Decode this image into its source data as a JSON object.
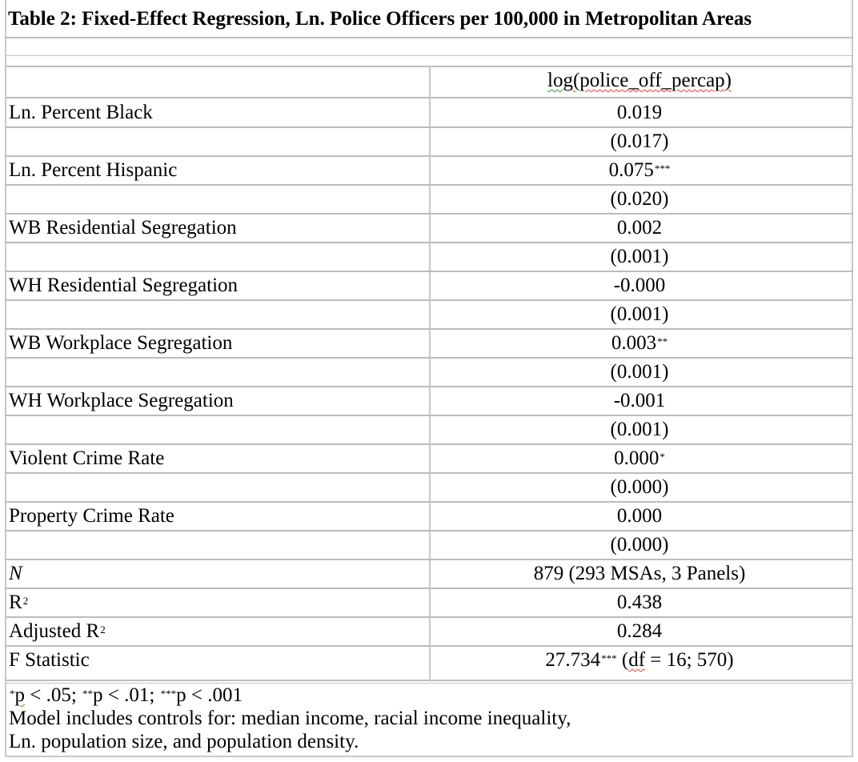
{
  "title": "Table 2: Fixed-Effect Regression, Ln. Police Officers per 100,000 in Metropolitan Areas",
  "column_header": {
    "dep_prefix": "log",
    "dep_name": "(police_off_percap)"
  },
  "rows": [
    {
      "label": "Ln. Percent Black",
      "coef": "0.019",
      "stars": "",
      "se": "(0.017)"
    },
    {
      "label": "Ln. Percent Hispanic",
      "coef": "0.075",
      "stars": "***",
      "se": "(0.020)"
    },
    {
      "label": "WB Residential Segregation",
      "coef": "0.002",
      "stars": "",
      "se": "(0.001)"
    },
    {
      "label": "WH Residential Segregation",
      "coef": "-0.000",
      "stars": "",
      "se": "(0.001)"
    },
    {
      "label": "WB Workplace Segregation",
      "coef": "0.003",
      "stars": "**",
      "se": "(0.001)"
    },
    {
      "label": "WH Workplace Segregation",
      "coef": "-0.001",
      "stars": "",
      "se": "(0.001)"
    },
    {
      "label": "Violent Crime Rate",
      "coef": "0.000",
      "stars": "*",
      "se": "(0.000)"
    },
    {
      "label": "Property Crime Rate",
      "coef": "0.000",
      "stars": "",
      "se": "(0.000)"
    }
  ],
  "stats": {
    "n_label": "N",
    "n_value": "879 (293 MSAs, 3 Panels)",
    "r2_label": "R",
    "r2_sup": "2",
    "r2_value": "0.438",
    "adj_r2_label": "Adjusted R",
    "adj_r2_sup": "2",
    "adj_r2_value": "0.284",
    "f_label": "F Statistic",
    "f_value": "27.734",
    "f_stars": "***",
    "f_df_prefix": "(",
    "f_df_word": "df",
    "f_df_rest": " = 16; 570)"
  },
  "footer": {
    "sig_star1": "*",
    "sig_p1": "p",
    "sig_rest1": " < .05; ",
    "sig_star2": "**",
    "sig_rest2": "p < .01; ",
    "sig_star3": "***",
    "sig_rest3": "p < .001",
    "note_line1": "Model includes controls for: median income, racial income inequality,",
    "note_line2": "Ln. population size, and population density."
  }
}
